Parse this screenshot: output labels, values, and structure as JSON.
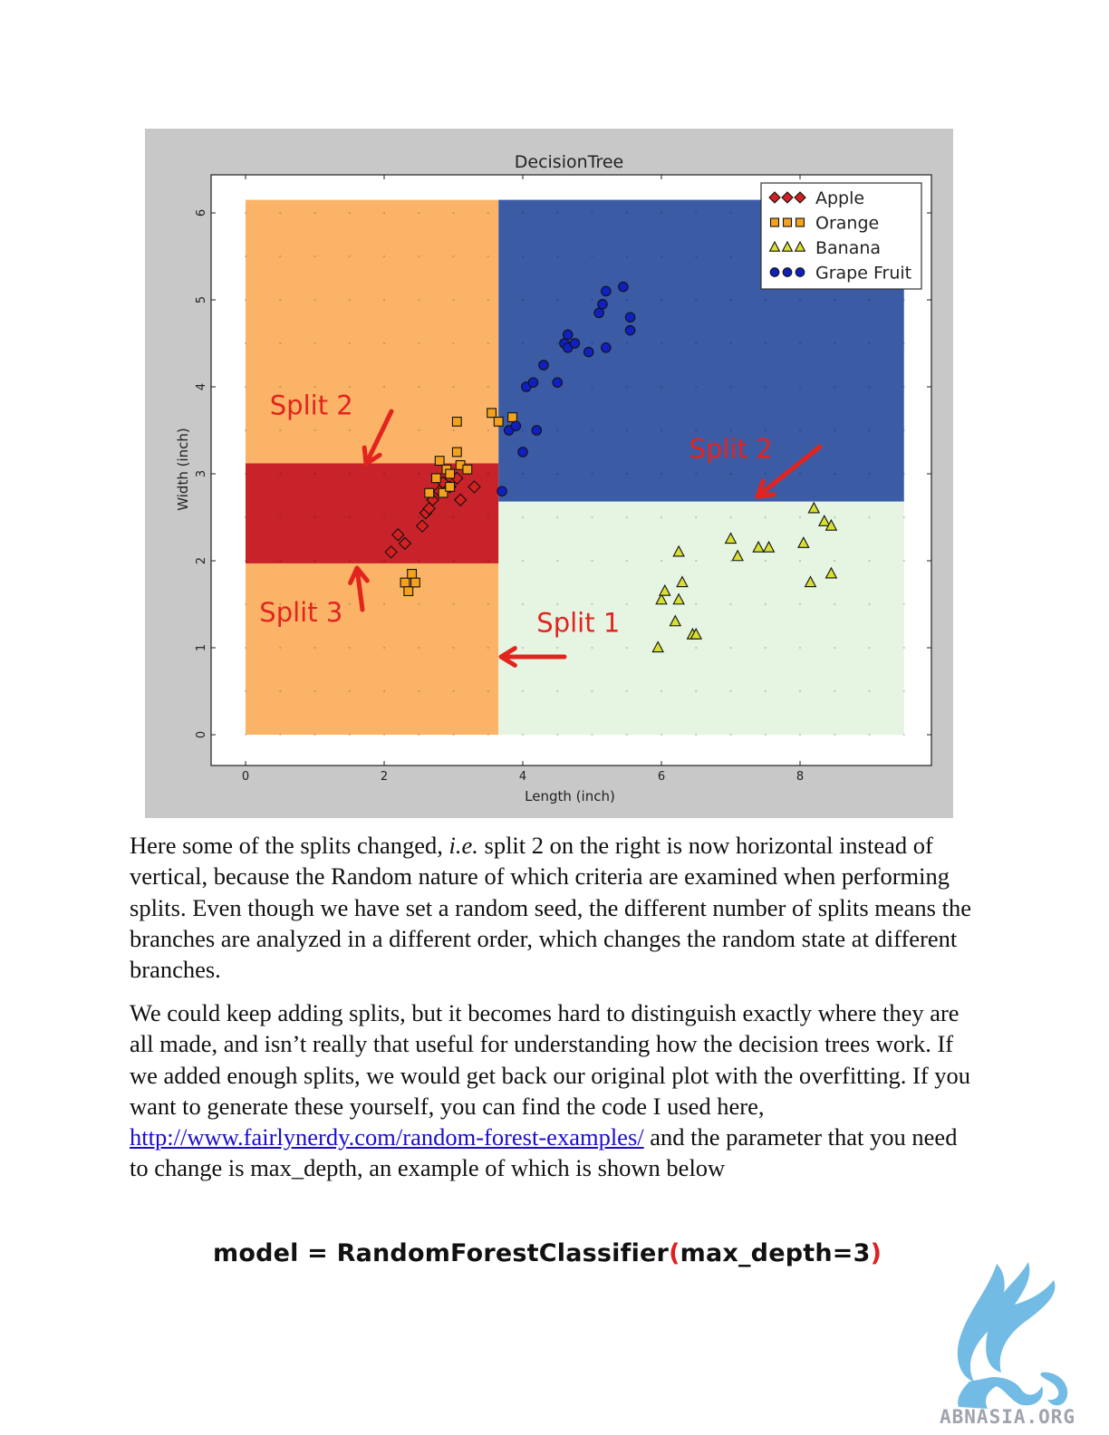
{
  "figure": {
    "chart_data": {
      "type": "scatter",
      "title": "DecisionTree",
      "xlabel": "Length (inch)",
      "ylabel": "Width (inch)",
      "xlim": [
        -0.5,
        9.9
      ],
      "ylim": [
        -0.35,
        6.45
      ],
      "xticks": [
        0,
        2,
        4,
        6,
        8
      ],
      "yticks": [
        0,
        1,
        2,
        3,
        4,
        5,
        6
      ],
      "legend_position": "top-right",
      "regions": [
        {
          "label": "Orange",
          "x": [
            0,
            3.65
          ],
          "y": [
            0,
            6.15
          ],
          "color": "#fbb467"
        },
        {
          "label": "Apple",
          "x": [
            0,
            3.65
          ],
          "y": [
            1.97,
            3.12
          ],
          "color": "#c8232a"
        },
        {
          "label": "Grape Fruit",
          "x": [
            3.65,
            9.5
          ],
          "y": [
            2.68,
            6.15
          ],
          "color": "#3b5ba5"
        },
        {
          "label": "Banana",
          "x": [
            3.65,
            9.5
          ],
          "y": [
            0,
            2.68
          ],
          "color": "#e6f4e2"
        }
      ],
      "series": [
        {
          "name": "Apple",
          "marker": "diamond",
          "color": "#d42020",
          "points": [
            [
              2.1,
              2.1
            ],
            [
              2.2,
              2.3
            ],
            [
              2.3,
              2.2
            ],
            [
              2.55,
              2.4
            ],
            [
              2.6,
              2.55
            ],
            [
              2.65,
              2.6
            ],
            [
              2.7,
              2.7
            ],
            [
              2.8,
              2.8
            ],
            [
              2.85,
              2.9
            ],
            [
              2.95,
              2.85
            ],
            [
              3.05,
              2.95
            ],
            [
              3.1,
              2.7
            ],
            [
              3.3,
              2.85
            ]
          ]
        },
        {
          "name": "Orange",
          "marker": "square",
          "color": "#f4a21c",
          "points": [
            [
              2.3,
              1.75
            ],
            [
              2.35,
              1.65
            ],
            [
              2.4,
              1.85
            ],
            [
              2.45,
              1.75
            ],
            [
              2.65,
              2.78
            ],
            [
              2.75,
              2.95
            ],
            [
              2.8,
              3.15
            ],
            [
              2.85,
              2.78
            ],
            [
              2.9,
              3.05
            ],
            [
              2.95,
              3.0
            ],
            [
              2.95,
              2.85
            ],
            [
              3.05,
              3.25
            ],
            [
              3.1,
              3.1
            ],
            [
              3.05,
              3.6
            ],
            [
              3.2,
              3.05
            ],
            [
              3.55,
              3.7
            ],
            [
              3.65,
              3.6
            ],
            [
              3.85,
              3.65
            ]
          ]
        },
        {
          "name": "Banana",
          "marker": "triangle",
          "color": "#d7e030",
          "points": [
            [
              5.95,
              1.0
            ],
            [
              6.0,
              1.55
            ],
            [
              6.05,
              1.65
            ],
            [
              6.2,
              1.3
            ],
            [
              6.25,
              1.55
            ],
            [
              6.25,
              2.1
            ],
            [
              6.3,
              1.75
            ],
            [
              6.45,
              1.15
            ],
            [
              6.5,
              1.15
            ],
            [
              7.0,
              2.25
            ],
            [
              7.1,
              2.05
            ],
            [
              7.4,
              2.15
            ],
            [
              7.55,
              2.15
            ],
            [
              8.05,
              2.2
            ],
            [
              8.15,
              1.75
            ],
            [
              8.2,
              2.6
            ],
            [
              8.35,
              2.45
            ],
            [
              8.45,
              2.4
            ],
            [
              8.45,
              1.85
            ]
          ]
        },
        {
          "name": "Grape Fruit",
          "marker": "circle",
          "color": "#1020c0",
          "points": [
            [
              3.7,
              2.8
            ],
            [
              3.8,
              3.5
            ],
            [
              3.9,
              3.55
            ],
            [
              4.0,
              3.25
            ],
            [
              4.05,
              4.0
            ],
            [
              4.15,
              4.05
            ],
            [
              4.2,
              3.5
            ],
            [
              4.3,
              4.25
            ],
            [
              4.5,
              4.05
            ],
            [
              4.6,
              4.5
            ],
            [
              4.65,
              4.6
            ],
            [
              4.65,
              4.45
            ],
            [
              4.75,
              4.5
            ],
            [
              4.95,
              4.4
            ],
            [
              5.1,
              4.85
            ],
            [
              5.15,
              4.95
            ],
            [
              5.2,
              5.1
            ],
            [
              5.2,
              4.45
            ],
            [
              5.45,
              5.15
            ],
            [
              5.55,
              4.8
            ],
            [
              5.55,
              4.65
            ]
          ]
        }
      ],
      "annotations": [
        {
          "text": "Split 2",
          "x": 0.35,
          "y": 3.68
        },
        {
          "text": "Split 2",
          "x": 6.4,
          "y": 3.18
        },
        {
          "text": "Split 3",
          "x": 0.2,
          "y": 1.3
        },
        {
          "text": "Split 1",
          "x": 4.2,
          "y": 1.18
        }
      ]
    }
  },
  "paragraph1": {
    "t1": "Here some of the splits changed, ",
    "ie": "i.e.",
    "t2": " split 2 on the right is now horizontal instead of vertical, because the Random nature of which criteria are examined when performing splits.  Even though we have set a random seed, the different number of splits means the branches are analyzed in a different order, which changes the random state at different branches."
  },
  "paragraph2": {
    "t1": "We could keep adding splits, but it becomes hard to distinguish exactly where they are all made, and isn’t really that useful for understanding how the decision trees work.  If we added enough splits, we would get back our original plot with the overfitting.   If you want to generate these yourself, you can find the code I used here, ",
    "link": "http://www.fairlynerdy.com/random-forest-examples/",
    "t2": " and the parameter that you need to change is max_depth, an example of which is shown below"
  },
  "code": {
    "prefix": "model = RandomForestClassifier",
    "open_paren": "(",
    "arg": "max_depth=3",
    "close_paren": ")"
  },
  "watermark": {
    "text": "ABNASIA.ORG",
    "icon": "griffin-logo-icon",
    "color": "#5ab0e0"
  }
}
